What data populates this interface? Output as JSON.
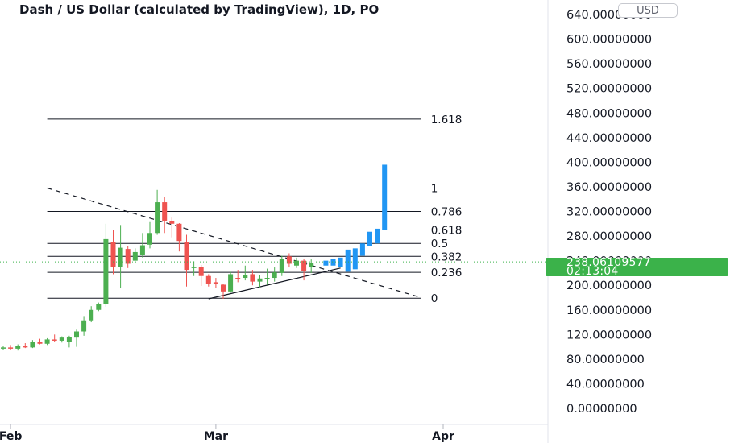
{
  "header": {
    "title": "Dash / US Dollar (calculated by TradingView), 1D, PO"
  },
  "currency_button": "USD",
  "last_price": {
    "value": "238.06109577",
    "countdown": "02:13:04",
    "color": "#3bb24a"
  },
  "colors": {
    "up": "#4caf50",
    "down": "#ef5350",
    "projection": "#2196f3",
    "fib_line": "#131722",
    "price_line": "#3bb24a"
  },
  "chart_data": {
    "type": "candlestick",
    "title": "Dash / US Dollar (calculated by TradingView), 1D, PO",
    "y_axis": {
      "labels": [
        "640.00000000",
        "600.00000000",
        "560.00000000",
        "520.00000000",
        "480.00000000",
        "440.00000000",
        "400.00000000",
        "360.00000000",
        "320.00000000",
        "280.00000000",
        "240.00000000",
        "200.00000000",
        "160.00000000",
        "120.00000000",
        "80.00000000",
        "40.00000000",
        "0.00000000"
      ],
      "range": [
        0,
        640
      ],
      "step": 40
    },
    "x_axis": {
      "labels": [
        {
          "text": "Feb",
          "day": 1
        },
        {
          "text": "Mar",
          "day": 29
        },
        {
          "text": "Apr",
          "day": 60
        }
      ],
      "range_days": [
        0,
        66
      ]
    },
    "fibonacci": {
      "levels": [
        {
          "label": "1.618",
          "price": 470
        },
        {
          "label": "1",
          "price": 358
        },
        {
          "label": "0.786",
          "price": 320
        },
        {
          "label": "0.618",
          "price": 290
        },
        {
          "label": "0.5",
          "price": 268
        },
        {
          "label": "0.382",
          "price": 247
        },
        {
          "label": "0.236",
          "price": 221
        },
        {
          "label": "0",
          "price": 179
        }
      ],
      "start_day": 6,
      "end_day": 57
    },
    "trendlines": [
      {
        "style": "dashed",
        "from": {
          "day": 6,
          "price": 358
        },
        "to": {
          "day": 57,
          "price": 180
        }
      },
      {
        "style": "solid",
        "from": {
          "day": 28,
          "price": 178
        },
        "to": {
          "day": 46,
          "price": 228
        }
      }
    ],
    "candles": [
      {
        "day": 0,
        "o": 98,
        "h": 102,
        "l": 95,
        "c": 99
      },
      {
        "day": 1,
        "o": 99,
        "h": 103,
        "l": 95,
        "c": 97
      },
      {
        "day": 2,
        "o": 97,
        "h": 104,
        "l": 94,
        "c": 102
      },
      {
        "day": 3,
        "o": 102,
        "h": 106,
        "l": 98,
        "c": 99
      },
      {
        "day": 4,
        "o": 99,
        "h": 111,
        "l": 98,
        "c": 108
      },
      {
        "day": 5,
        "o": 108,
        "h": 113,
        "l": 104,
        "c": 105
      },
      {
        "day": 6,
        "o": 105,
        "h": 114,
        "l": 103,
        "c": 112
      },
      {
        "day": 7,
        "o": 112,
        "h": 120,
        "l": 108,
        "c": 110
      },
      {
        "day": 8,
        "o": 110,
        "h": 117,
        "l": 107,
        "c": 115
      },
      {
        "day": 9,
        "o": 108,
        "h": 118,
        "l": 99,
        "c": 116
      },
      {
        "day": 10,
        "o": 115,
        "h": 128,
        "l": 100,
        "c": 125
      },
      {
        "day": 11,
        "o": 125,
        "h": 150,
        "l": 118,
        "c": 143
      },
      {
        "day": 12,
        "o": 143,
        "h": 166,
        "l": 140,
        "c": 160
      },
      {
        "day": 13,
        "o": 160,
        "h": 172,
        "l": 158,
        "c": 170
      },
      {
        "day": 14,
        "o": 170,
        "h": 300,
        "l": 165,
        "c": 275
      },
      {
        "day": 15,
        "o": 270,
        "h": 290,
        "l": 218,
        "c": 230
      },
      {
        "day": 16,
        "o": 230,
        "h": 298,
        "l": 195,
        "c": 261
      },
      {
        "day": 17,
        "o": 259,
        "h": 264,
        "l": 228,
        "c": 235
      },
      {
        "day": 18,
        "o": 240,
        "h": 260,
        "l": 240,
        "c": 254
      },
      {
        "day": 19,
        "o": 250,
        "h": 285,
        "l": 245,
        "c": 265
      },
      {
        "day": 20,
        "o": 266,
        "h": 304,
        "l": 260,
        "c": 285
      },
      {
        "day": 21,
        "o": 285,
        "h": 355,
        "l": 282,
        "c": 335
      },
      {
        "day": 22,
        "o": 335,
        "h": 343,
        "l": 285,
        "c": 305
      },
      {
        "day": 23,
        "o": 305,
        "h": 310,
        "l": 278,
        "c": 300
      },
      {
        "day": 24,
        "o": 300,
        "h": 301,
        "l": 255,
        "c": 272
      },
      {
        "day": 25,
        "o": 270,
        "h": 282,
        "l": 198,
        "c": 225
      },
      {
        "day": 26,
        "o": 228,
        "h": 239,
        "l": 215,
        "c": 230
      },
      {
        "day": 27,
        "o": 230,
        "h": 233,
        "l": 199,
        "c": 215
      },
      {
        "day": 28,
        "o": 215,
        "h": 218,
        "l": 198,
        "c": 202
      },
      {
        "day": 29,
        "o": 205,
        "h": 212,
        "l": 195,
        "c": 202
      },
      {
        "day": 30,
        "o": 201,
        "h": 202,
        "l": 178,
        "c": 190
      },
      {
        "day": 31,
        "o": 190,
        "h": 222,
        "l": 188,
        "c": 218
      },
      {
        "day": 32,
        "o": 212,
        "h": 225,
        "l": 205,
        "c": 210
      },
      {
        "day": 33,
        "o": 212,
        "h": 232,
        "l": 208,
        "c": 216
      },
      {
        "day": 34,
        "o": 218,
        "h": 225,
        "l": 200,
        "c": 206
      },
      {
        "day": 35,
        "o": 206,
        "h": 217,
        "l": 197,
        "c": 211
      },
      {
        "day": 36,
        "o": 211,
        "h": 227,
        "l": 201,
        "c": 212
      },
      {
        "day": 37,
        "o": 212,
        "h": 229,
        "l": 206,
        "c": 221
      },
      {
        "day": 38,
        "o": 220,
        "h": 248,
        "l": 215,
        "c": 243
      },
      {
        "day": 39,
        "o": 247,
        "h": 252,
        "l": 229,
        "c": 235
      },
      {
        "day": 40,
        "o": 232,
        "h": 245,
        "l": 228,
        "c": 240
      },
      {
        "day": 41,
        "o": 240,
        "h": 243,
        "l": 208,
        "c": 223
      },
      {
        "day": 42,
        "o": 229,
        "h": 242,
        "l": 220,
        "c": 236
      }
    ],
    "projection": [
      {
        "day": 44,
        "low": 232,
        "high": 240
      },
      {
        "day": 45,
        "low": 232,
        "high": 243
      },
      {
        "day": 46,
        "low": 230,
        "high": 245
      },
      {
        "day": 47,
        "low": 222,
        "high": 258
      },
      {
        "day": 48,
        "low": 226,
        "high": 260
      },
      {
        "day": 49,
        "low": 248,
        "high": 268
      },
      {
        "day": 50,
        "low": 264,
        "high": 287
      },
      {
        "day": 51,
        "low": 268,
        "high": 292
      },
      {
        "day": 52,
        "low": 290,
        "high": 396
      }
    ],
    "last_price": 238.06
  }
}
